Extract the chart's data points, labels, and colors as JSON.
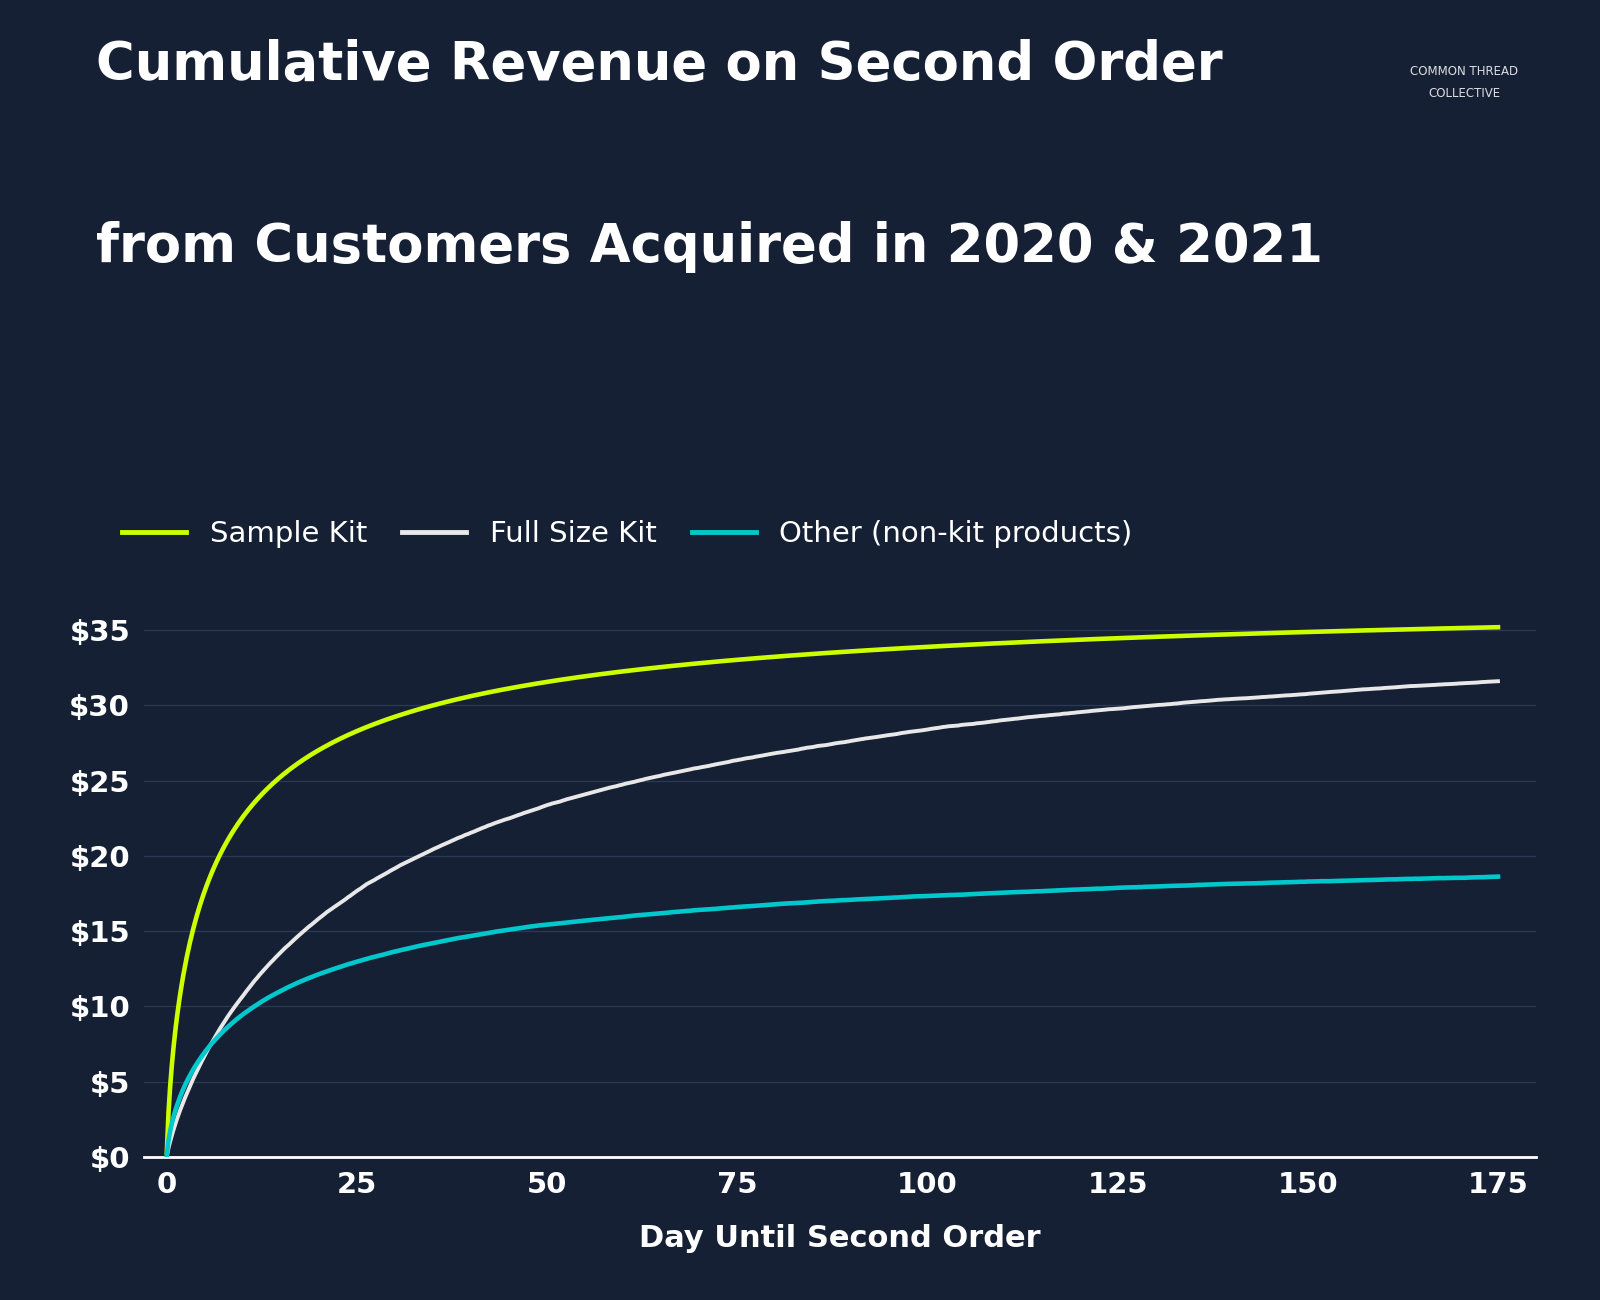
{
  "title_line1": "Cumulative Revenue on Second Order",
  "title_line2": "from Customers Acquired in 2020 & 2021",
  "xlabel": "Day Until Second Order",
  "background_color": "#162035",
  "grid_color": "#2a3a55",
  "text_color": "#ffffff",
  "line_sample_kit_color": "#ccff00",
  "line_full_size_kit_color": "#e8e8e8",
  "line_other_color": "#00c8cc",
  "ytick_labels": [
    "$0",
    "$5",
    "$10",
    "$15",
    "$20",
    "$25",
    "$30",
    "$35"
  ],
  "ytick_values": [
    0,
    5,
    10,
    15,
    20,
    25,
    30,
    35
  ],
  "xtick_values": [
    0,
    25,
    50,
    75,
    100,
    125,
    150,
    175
  ],
  "ylim": [
    0,
    38
  ],
  "xlim": [
    -3,
    180
  ],
  "legend_labels": [
    "Sample Kit",
    "Full Size Kit",
    "Other (non-kit products)"
  ],
  "title_fontsize": 38,
  "label_fontsize": 22,
  "tick_fontsize": 21,
  "legend_fontsize": 21,
  "line_width": 2.8
}
